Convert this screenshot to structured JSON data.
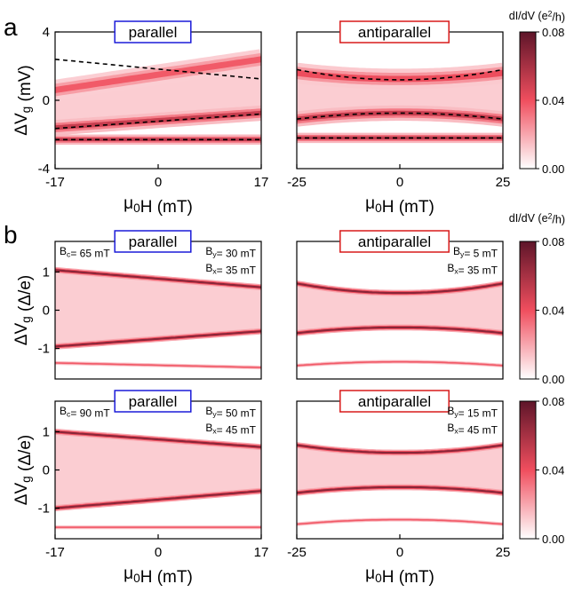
{
  "panel_labels": [
    "a",
    "b"
  ],
  "colorbar": {
    "label": "dI/dV (e²/h)",
    "ticks": [
      "0.08",
      "0.04",
      "0.00"
    ],
    "range": [
      0,
      0.08
    ],
    "colors": [
      "#ffffff",
      "#f04e5e",
      "#5e1529"
    ]
  },
  "chart_data": [
    {
      "id": "a-parallel",
      "type": "heatmap",
      "title": "parallel",
      "title_color": "#1a1ad8",
      "xlabel": "μ0H (mT)",
      "ylabel": "ΔVg (mV)",
      "xlim": [
        -17,
        17
      ],
      "ylim": [
        -4,
        4
      ],
      "xticks": [
        "-17",
        "0",
        "17"
      ],
      "yticks": [
        "4",
        "0",
        "-4"
      ],
      "bands": [
        {
          "type": "tri",
          "start": 0.6,
          "end": 2.4,
          "min": 1.25,
          "width": 1.2,
          "intensity": 0.55
        },
        {
          "type": "tri",
          "start": -1.6,
          "end": -0.75,
          "min": 0,
          "width": 0.9,
          "intensity": 0.75
        },
        {
          "type": "flat",
          "y": -2.3,
          "width": 0.6,
          "intensity": 0.8
        }
      ],
      "dashed": [
        {
          "start": 2.4,
          "end": 1.25
        },
        {
          "start": -1.65,
          "end": -0.8
        },
        {
          "start": -2.3,
          "end": -2.3
        }
      ]
    },
    {
      "id": "a-antiparallel",
      "type": "heatmap",
      "title": "antiparallel",
      "title_color": "#d81a1a",
      "xlabel": "μ0H (mT)",
      "ylabel": "",
      "xlim": [
        -25,
        25
      ],
      "ylim": [
        -4,
        4
      ],
      "xticks": [
        "-25",
        "0",
        "25"
      ],
      "yticks": [],
      "bands": [
        {
          "type": "para",
          "edge": 1.6,
          "center": 1.25,
          "width": 1.2,
          "intensity": 0.6
        },
        {
          "type": "para",
          "edge": -1.1,
          "center": -0.75,
          "width": 0.9,
          "intensity": 0.75
        },
        {
          "type": "flat",
          "y": -2.2,
          "width": 0.6,
          "intensity": 0.8
        }
      ],
      "dashed": [
        {
          "type": "para",
          "edge": 1.8,
          "center": 1.2
        },
        {
          "type": "para",
          "edge": -1.1,
          "center": -0.75
        },
        {
          "type": "flat",
          "y": -2.2
        }
      ]
    },
    {
      "id": "b-parallel-1",
      "type": "heatmap",
      "title": "parallel",
      "title_color": "#1a1ad8",
      "annotations": [
        "Bc= 65 mT",
        "By= 30 mT",
        "Bx= 35 mT"
      ],
      "xlabel": "",
      "ylabel": "ΔVg (Δ/e)",
      "xlim": [
        -17,
        17
      ],
      "ylim": [
        -1.8,
        1.8
      ],
      "xticks": [],
      "yticks": [
        "1",
        "0",
        "-1"
      ],
      "bands": [
        {
          "type": "tri",
          "start": 1.05,
          "end": 0.6,
          "min": 0.2,
          "width": 0.16,
          "intensity": 1
        },
        {
          "type": "tri",
          "start": -0.95,
          "end": -0.55,
          "min": 0.2,
          "width": 0.16,
          "intensity": 1
        },
        {
          "type": "tri",
          "start": -1.38,
          "end": -1.5,
          "min": 0.2,
          "width": 0.1,
          "intensity": 0.55
        }
      ]
    },
    {
      "id": "b-antiparallel-1",
      "type": "heatmap",
      "title": "antiparallel",
      "title_color": "#d81a1a",
      "annotations": [
        "By= 5 mT",
        "Bx= 35 mT"
      ],
      "xlabel": "",
      "ylabel": "",
      "xlim": [
        -25,
        25
      ],
      "ylim": [
        -1.8,
        1.8
      ],
      "xticks": [],
      "yticks": [],
      "bands": [
        {
          "type": "para",
          "edge": 0.7,
          "center": 0.45,
          "width": 0.16,
          "intensity": 1
        },
        {
          "type": "para",
          "edge": -0.6,
          "center": -0.45,
          "width": 0.16,
          "intensity": 1
        },
        {
          "type": "para",
          "edge": -1.45,
          "center": -1.35,
          "width": 0.1,
          "intensity": 0.55
        }
      ]
    },
    {
      "id": "b-parallel-2",
      "type": "heatmap",
      "title": "parallel",
      "title_color": "#1a1ad8",
      "annotations": [
        "Bc= 90 mT",
        "By= 50 mT",
        "Bx= 45 mT"
      ],
      "xlabel": "μ0H (mT)",
      "ylabel": "ΔVg (Δ/e)",
      "xlim": [
        -17,
        17
      ],
      "ylim": [
        -1.8,
        1.8
      ],
      "xticks": [
        "-17",
        "0",
        "17"
      ],
      "yticks": [
        "1",
        "0",
        "-1"
      ],
      "bands": [
        {
          "type": "tri",
          "start": 1.0,
          "end": 0.6,
          "min": 0.2,
          "width": 0.16,
          "intensity": 1
        },
        {
          "type": "tri",
          "start": -1.0,
          "end": -0.55,
          "min": 0.2,
          "width": 0.16,
          "intensity": 1
        },
        {
          "type": "flat",
          "y": -1.5,
          "width": 0.1,
          "intensity": 0.55
        }
      ]
    },
    {
      "id": "b-antiparallel-2",
      "type": "heatmap",
      "title": "antiparallel",
      "title_color": "#d81a1a",
      "annotations": [
        "By= 15 mT",
        "Bx= 45 mT"
      ],
      "xlabel": "μ0H (mT)",
      "ylabel": "",
      "xlim": [
        -25,
        25
      ],
      "ylim": [
        -1.8,
        1.8
      ],
      "xticks": [
        "-25",
        "0",
        "25"
      ],
      "yticks": [],
      "bands": [
        {
          "type": "para",
          "edge": 0.65,
          "center": 0.45,
          "width": 0.16,
          "intensity": 1
        },
        {
          "type": "para",
          "edge": -0.6,
          "center": -0.45,
          "width": 0.16,
          "intensity": 1
        },
        {
          "type": "para",
          "edge": -1.42,
          "center": -1.3,
          "width": 0.1,
          "intensity": 0.55
        }
      ]
    }
  ]
}
